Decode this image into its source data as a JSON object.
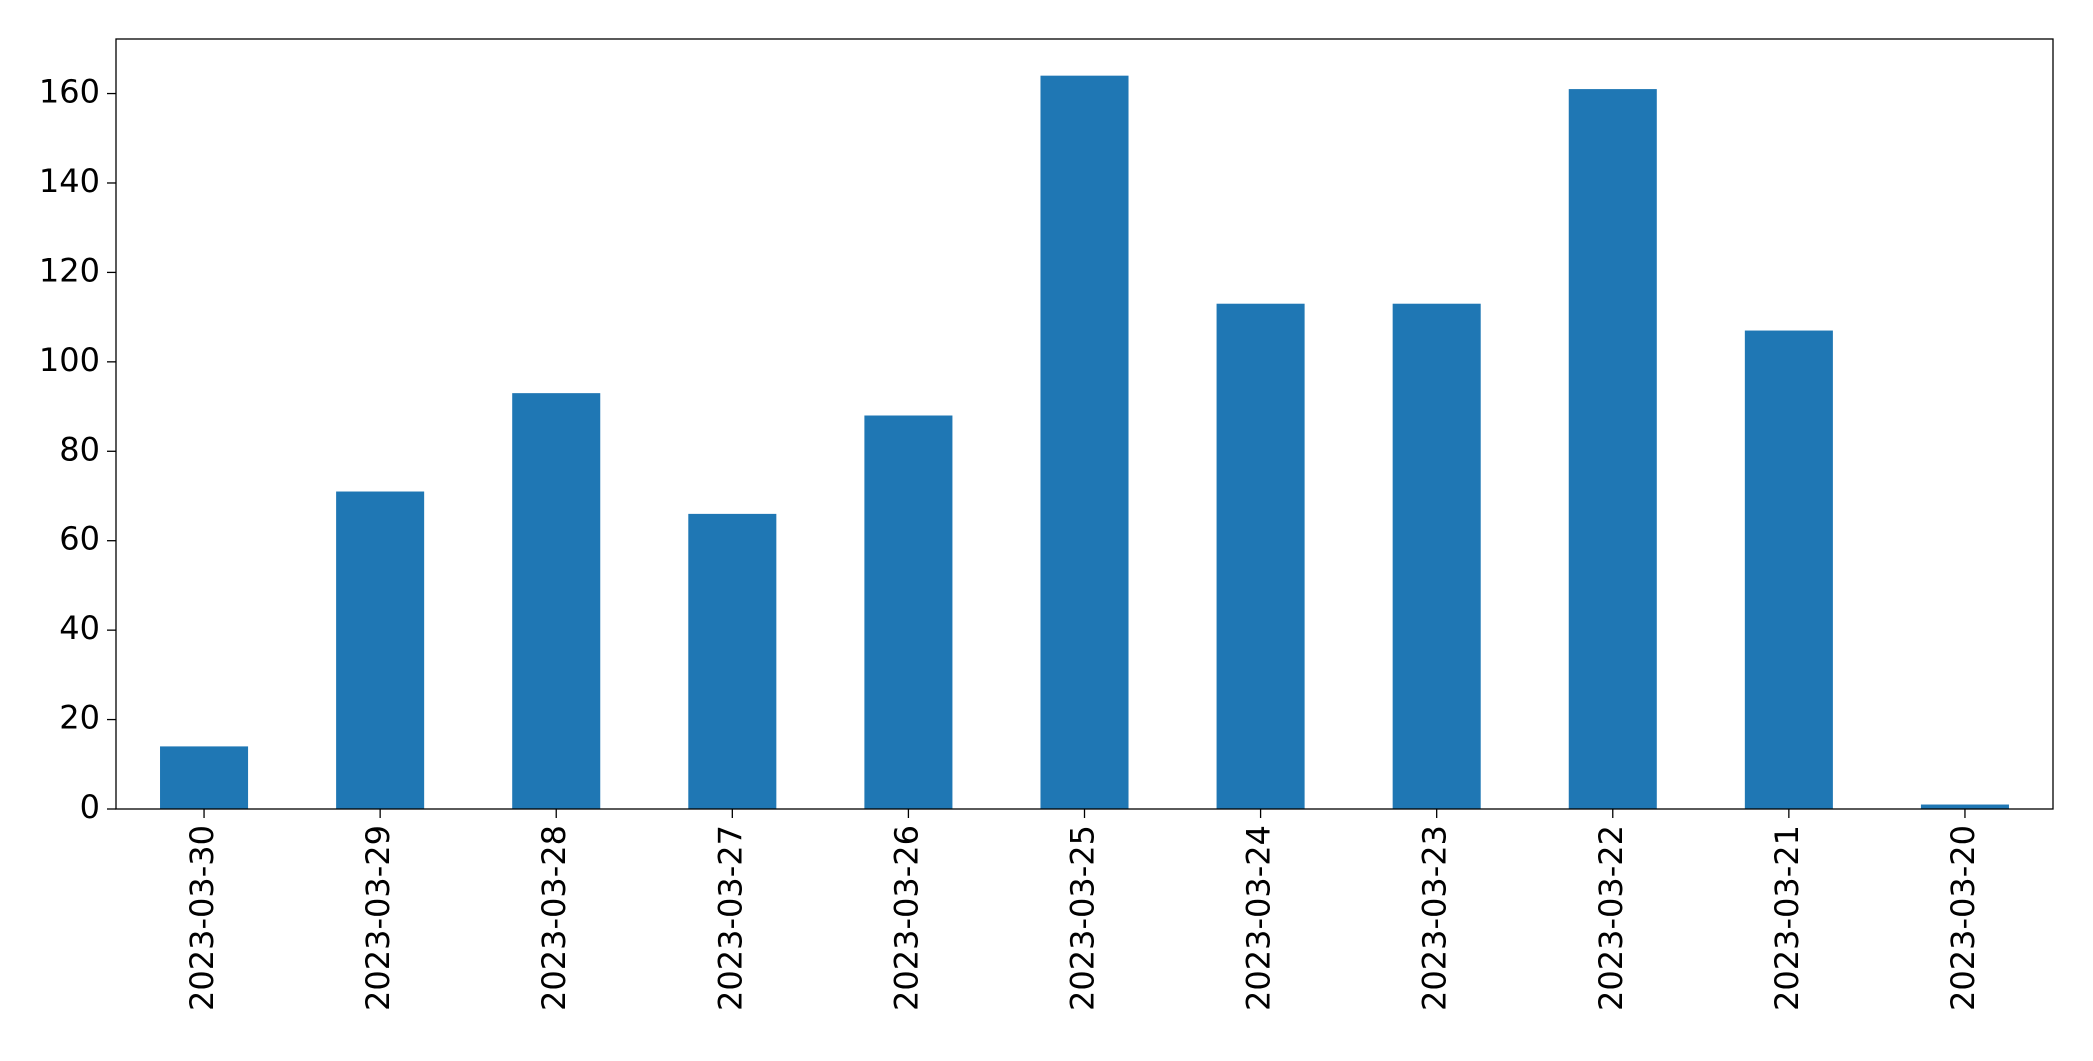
{
  "chart_data": {
    "type": "bar",
    "categories": [
      "2023-03-30",
      "2023-03-29",
      "2023-03-28",
      "2023-03-27",
      "2023-03-26",
      "2023-03-25",
      "2023-03-24",
      "2023-03-23",
      "2023-03-22",
      "2023-03-21",
      "2023-03-20"
    ],
    "values": [
      14,
      71,
      93,
      66,
      88,
      164,
      113,
      113,
      161,
      107,
      1
    ],
    "color": "#1f77b4",
    "ylim": [
      0,
      172.2
    ],
    "yticks": [
      0,
      20,
      40,
      60,
      80,
      100,
      120,
      140,
      160
    ],
    "grid": false
  }
}
